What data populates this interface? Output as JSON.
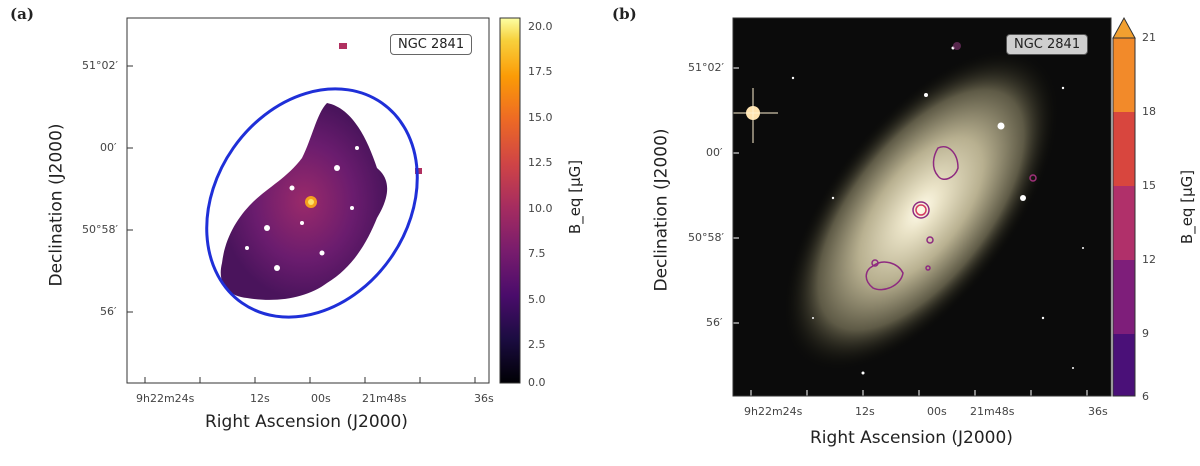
{
  "panel_a": {
    "letter": "(a)",
    "galaxy_label": "NGC 2841",
    "xlabel": "Right Ascension (J2000)",
    "ylabel": "Declination (J2000)",
    "xticks": [
      "9h22m24s",
      "12s",
      "00s",
      "21m48s",
      "36s"
    ],
    "yticks": [
      "51°02′",
      "00′",
      "50°58′",
      "56′"
    ],
    "colorbar": {
      "title": "B_eq [μG]",
      "min": 0,
      "max": 20,
      "ticks": [
        "0.0",
        "2.5",
        "5.0",
        "7.5",
        "10.0",
        "12.5",
        "15.0",
        "17.5",
        "20.0"
      ],
      "colormap": [
        "#000004",
        "#1b0c41",
        "#4a0c6b",
        "#781c6d",
        "#a52c60",
        "#cf4446",
        "#ed6925",
        "#fb9b06",
        "#f7d13d",
        "#fcffa4"
      ]
    }
  },
  "panel_b": {
    "letter": "(b)",
    "galaxy_label": "NGC 2841",
    "xlabel": "Right Ascension (J2000)",
    "ylabel": "Declination (J2000)",
    "xticks": [
      "9h22m24s",
      "12s",
      "00s",
      "21m48s",
      "36s"
    ],
    "yticks": [
      "51°02′",
      "00′",
      "50°58′",
      "56′"
    ],
    "colorbar": {
      "title": "B_eq [μG]",
      "ticks": [
        "6",
        "9",
        "12",
        "15",
        "18",
        "21"
      ],
      "levels": [
        "#3d0d6b",
        "#6a1a7a",
        "#9a2474",
        "#c02a66",
        "#e45a3a",
        "#f28a2a"
      ]
    }
  }
}
